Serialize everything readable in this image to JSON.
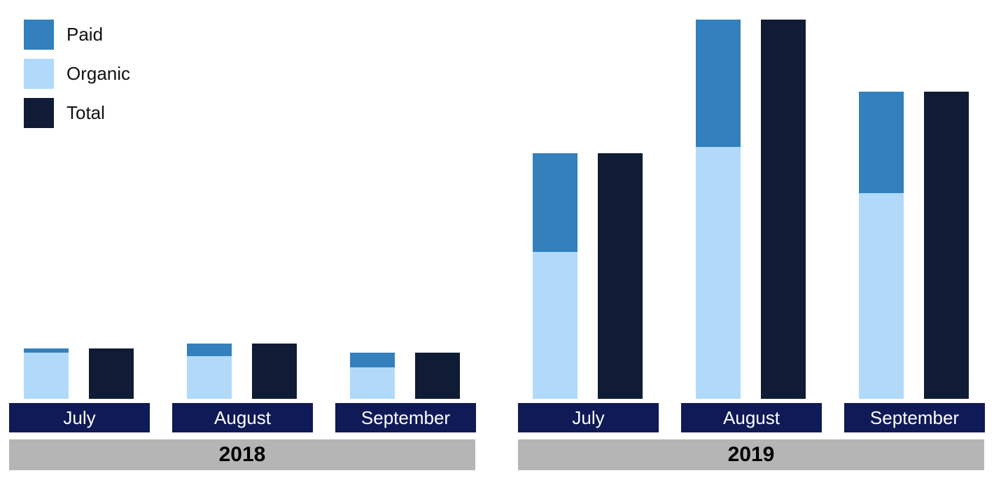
{
  "chart_data": {
    "type": "bar",
    "stacked": true,
    "title": "",
    "xlabel": "",
    "ylabel": "",
    "ylim": [
      0,
      100
    ],
    "groups": [
      {
        "year": "2018",
        "months": [
          {
            "label": "July",
            "organic": 12.2,
            "paid": 1.1,
            "total": 13.3
          },
          {
            "label": "August",
            "organic": 11.3,
            "paid": 3.3,
            "total": 14.6
          },
          {
            "label": "September",
            "organic": 8.3,
            "paid": 3.9,
            "total": 12.2
          }
        ]
      },
      {
        "year": "2019",
        "months": [
          {
            "label": "July",
            "organic": 38.8,
            "paid": 25.9,
            "total": 64.7
          },
          {
            "label": "August",
            "organic": 66.5,
            "paid": 33.5,
            "total": 100
          },
          {
            "label": "September",
            "organic": 54.2,
            "paid": 26.8,
            "total": 81.0
          }
        ]
      }
    ],
    "legend": {
      "position": "top-left",
      "items": [
        {
          "key": "paid",
          "label": "Paid",
          "color": "#3380bd"
        },
        {
          "key": "organic",
          "label": "Organic",
          "color": "#b1dafa"
        },
        {
          "key": "total",
          "label": "Total",
          "color": "#101c35"
        }
      ]
    }
  }
}
